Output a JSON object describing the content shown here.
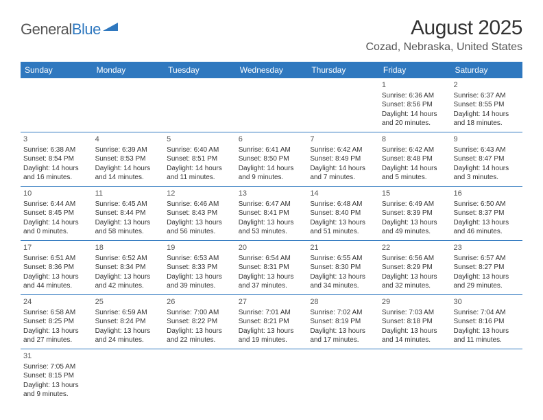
{
  "logo": {
    "part1": "General",
    "part2": "Blue"
  },
  "title": "August 2025",
  "location": "Cozad, Nebraska, United States",
  "colors": {
    "header_bg": "#2f78bf",
    "header_fg": "#ffffff",
    "border": "#2f78bf",
    "text": "#333333",
    "muted": "#555555",
    "logo_gray": "#545454",
    "logo_blue": "#2f78bf",
    "page_bg": "#ffffff"
  },
  "typography": {
    "title_fontsize": 30,
    "location_fontsize": 16,
    "header_fontsize": 12,
    "daynum_fontsize": 11,
    "body_fontsize": 10
  },
  "dayHeaders": [
    "Sunday",
    "Monday",
    "Tuesday",
    "Wednesday",
    "Thursday",
    "Friday",
    "Saturday"
  ],
  "weeks": [
    [
      null,
      null,
      null,
      null,
      null,
      {
        "n": "1",
        "sr": "Sunrise: 6:36 AM",
        "ss": "Sunset: 8:56 PM",
        "d1": "Daylight: 14 hours",
        "d2": "and 20 minutes."
      },
      {
        "n": "2",
        "sr": "Sunrise: 6:37 AM",
        "ss": "Sunset: 8:55 PM",
        "d1": "Daylight: 14 hours",
        "d2": "and 18 minutes."
      }
    ],
    [
      {
        "n": "3",
        "sr": "Sunrise: 6:38 AM",
        "ss": "Sunset: 8:54 PM",
        "d1": "Daylight: 14 hours",
        "d2": "and 16 minutes."
      },
      {
        "n": "4",
        "sr": "Sunrise: 6:39 AM",
        "ss": "Sunset: 8:53 PM",
        "d1": "Daylight: 14 hours",
        "d2": "and 14 minutes."
      },
      {
        "n": "5",
        "sr": "Sunrise: 6:40 AM",
        "ss": "Sunset: 8:51 PM",
        "d1": "Daylight: 14 hours",
        "d2": "and 11 minutes."
      },
      {
        "n": "6",
        "sr": "Sunrise: 6:41 AM",
        "ss": "Sunset: 8:50 PM",
        "d1": "Daylight: 14 hours",
        "d2": "and 9 minutes."
      },
      {
        "n": "7",
        "sr": "Sunrise: 6:42 AM",
        "ss": "Sunset: 8:49 PM",
        "d1": "Daylight: 14 hours",
        "d2": "and 7 minutes."
      },
      {
        "n": "8",
        "sr": "Sunrise: 6:42 AM",
        "ss": "Sunset: 8:48 PM",
        "d1": "Daylight: 14 hours",
        "d2": "and 5 minutes."
      },
      {
        "n": "9",
        "sr": "Sunrise: 6:43 AM",
        "ss": "Sunset: 8:47 PM",
        "d1": "Daylight: 14 hours",
        "d2": "and 3 minutes."
      }
    ],
    [
      {
        "n": "10",
        "sr": "Sunrise: 6:44 AM",
        "ss": "Sunset: 8:45 PM",
        "d1": "Daylight: 14 hours",
        "d2": "and 0 minutes."
      },
      {
        "n": "11",
        "sr": "Sunrise: 6:45 AM",
        "ss": "Sunset: 8:44 PM",
        "d1": "Daylight: 13 hours",
        "d2": "and 58 minutes."
      },
      {
        "n": "12",
        "sr": "Sunrise: 6:46 AM",
        "ss": "Sunset: 8:43 PM",
        "d1": "Daylight: 13 hours",
        "d2": "and 56 minutes."
      },
      {
        "n": "13",
        "sr": "Sunrise: 6:47 AM",
        "ss": "Sunset: 8:41 PM",
        "d1": "Daylight: 13 hours",
        "d2": "and 53 minutes."
      },
      {
        "n": "14",
        "sr": "Sunrise: 6:48 AM",
        "ss": "Sunset: 8:40 PM",
        "d1": "Daylight: 13 hours",
        "d2": "and 51 minutes."
      },
      {
        "n": "15",
        "sr": "Sunrise: 6:49 AM",
        "ss": "Sunset: 8:39 PM",
        "d1": "Daylight: 13 hours",
        "d2": "and 49 minutes."
      },
      {
        "n": "16",
        "sr": "Sunrise: 6:50 AM",
        "ss": "Sunset: 8:37 PM",
        "d1": "Daylight: 13 hours",
        "d2": "and 46 minutes."
      }
    ],
    [
      {
        "n": "17",
        "sr": "Sunrise: 6:51 AM",
        "ss": "Sunset: 8:36 PM",
        "d1": "Daylight: 13 hours",
        "d2": "and 44 minutes."
      },
      {
        "n": "18",
        "sr": "Sunrise: 6:52 AM",
        "ss": "Sunset: 8:34 PM",
        "d1": "Daylight: 13 hours",
        "d2": "and 42 minutes."
      },
      {
        "n": "19",
        "sr": "Sunrise: 6:53 AM",
        "ss": "Sunset: 8:33 PM",
        "d1": "Daylight: 13 hours",
        "d2": "and 39 minutes."
      },
      {
        "n": "20",
        "sr": "Sunrise: 6:54 AM",
        "ss": "Sunset: 8:31 PM",
        "d1": "Daylight: 13 hours",
        "d2": "and 37 minutes."
      },
      {
        "n": "21",
        "sr": "Sunrise: 6:55 AM",
        "ss": "Sunset: 8:30 PM",
        "d1": "Daylight: 13 hours",
        "d2": "and 34 minutes."
      },
      {
        "n": "22",
        "sr": "Sunrise: 6:56 AM",
        "ss": "Sunset: 8:29 PM",
        "d1": "Daylight: 13 hours",
        "d2": "and 32 minutes."
      },
      {
        "n": "23",
        "sr": "Sunrise: 6:57 AM",
        "ss": "Sunset: 8:27 PM",
        "d1": "Daylight: 13 hours",
        "d2": "and 29 minutes."
      }
    ],
    [
      {
        "n": "24",
        "sr": "Sunrise: 6:58 AM",
        "ss": "Sunset: 8:25 PM",
        "d1": "Daylight: 13 hours",
        "d2": "and 27 minutes."
      },
      {
        "n": "25",
        "sr": "Sunrise: 6:59 AM",
        "ss": "Sunset: 8:24 PM",
        "d1": "Daylight: 13 hours",
        "d2": "and 24 minutes."
      },
      {
        "n": "26",
        "sr": "Sunrise: 7:00 AM",
        "ss": "Sunset: 8:22 PM",
        "d1": "Daylight: 13 hours",
        "d2": "and 22 minutes."
      },
      {
        "n": "27",
        "sr": "Sunrise: 7:01 AM",
        "ss": "Sunset: 8:21 PM",
        "d1": "Daylight: 13 hours",
        "d2": "and 19 minutes."
      },
      {
        "n": "28",
        "sr": "Sunrise: 7:02 AM",
        "ss": "Sunset: 8:19 PM",
        "d1": "Daylight: 13 hours",
        "d2": "and 17 minutes."
      },
      {
        "n": "29",
        "sr": "Sunrise: 7:03 AM",
        "ss": "Sunset: 8:18 PM",
        "d1": "Daylight: 13 hours",
        "d2": "and 14 minutes."
      },
      {
        "n": "30",
        "sr": "Sunrise: 7:04 AM",
        "ss": "Sunset: 8:16 PM",
        "d1": "Daylight: 13 hours",
        "d2": "and 11 minutes."
      }
    ],
    [
      {
        "n": "31",
        "sr": "Sunrise: 7:05 AM",
        "ss": "Sunset: 8:15 PM",
        "d1": "Daylight: 13 hours",
        "d2": "and 9 minutes."
      },
      null,
      null,
      null,
      null,
      null,
      null
    ]
  ]
}
